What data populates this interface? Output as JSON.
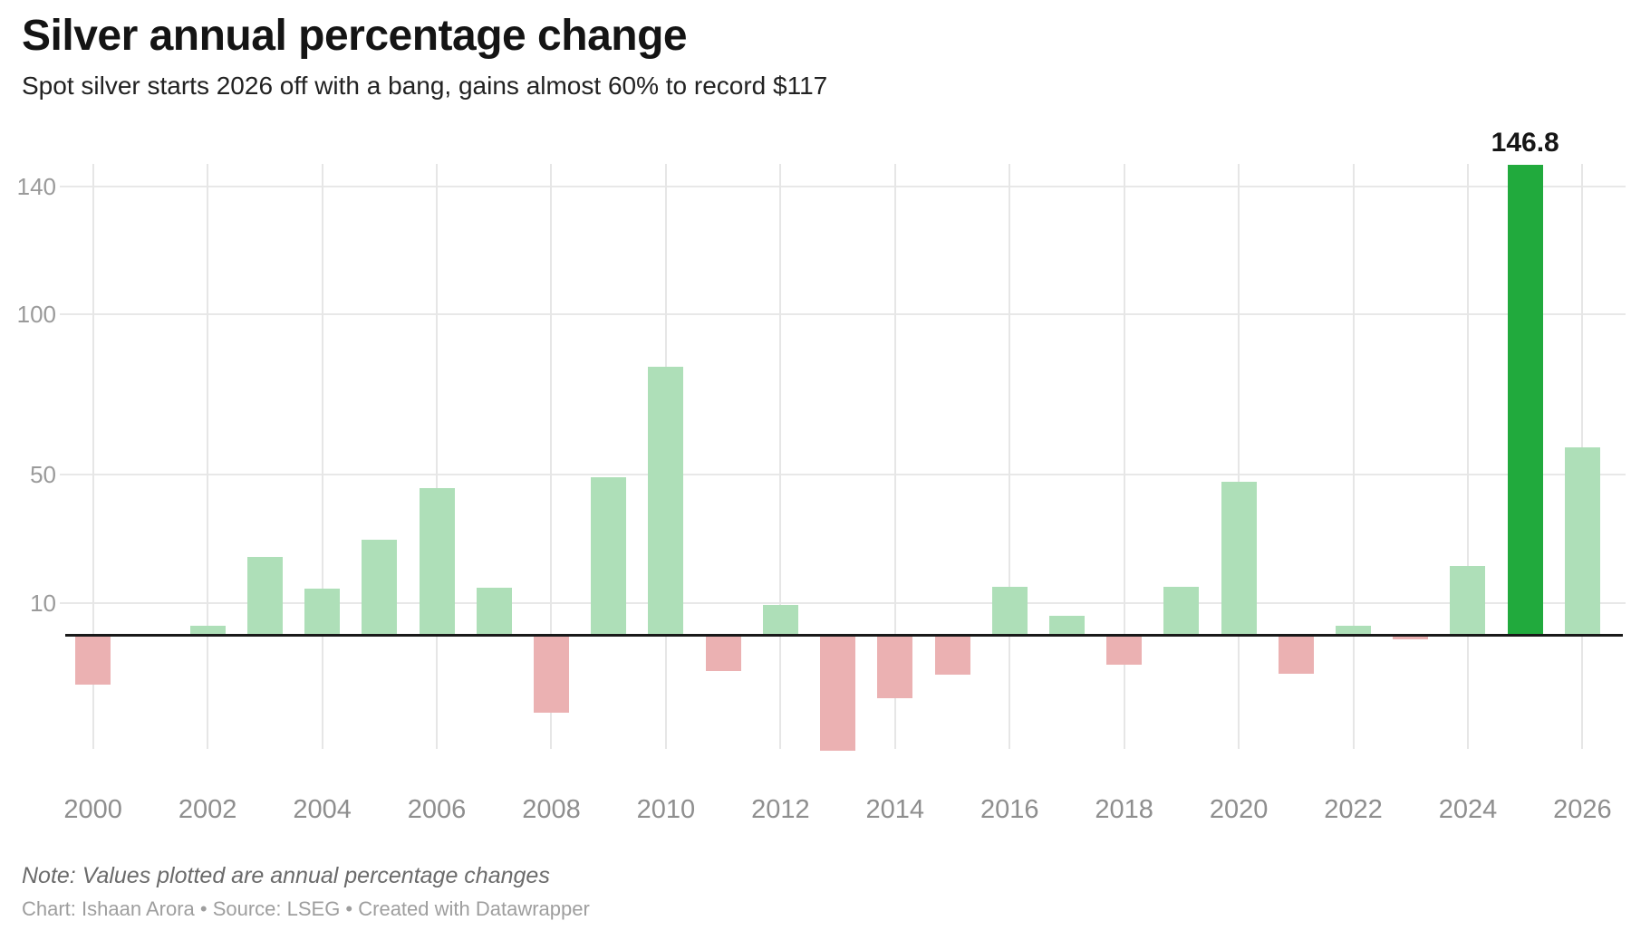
{
  "header": {
    "title": "Silver annual percentage change",
    "subtitle": "Spot silver starts 2026 off with a bang, gains almost 60% to record $117"
  },
  "chart_data": {
    "type": "bar",
    "title": "Silver annual percentage change",
    "subtitle": "Spot silver starts 2026 off with a bang, gains almost 60% to record $117",
    "x": [
      2000,
      2001,
      2002,
      2003,
      2004,
      2005,
      2006,
      2007,
      2008,
      2009,
      2010,
      2011,
      2012,
      2013,
      2014,
      2015,
      2016,
      2017,
      2018,
      2019,
      2020,
      2021,
      2022,
      2023,
      2024,
      2025,
      2026
    ],
    "values": [
      -15.4,
      0,
      2.9,
      24.4,
      14.3,
      29.8,
      45.8,
      14.6,
      -24.0,
      49.1,
      83.7,
      -10.9,
      9.2,
      -36.0,
      -19.6,
      -12.1,
      15.0,
      5.9,
      -9.0,
      15.1,
      47.7,
      -11.8,
      2.8,
      -1.2,
      21.6,
      146.8,
      58.5
    ],
    "xlabel": "",
    "ylabel": "",
    "xticks": [
      2000,
      2002,
      2004,
      2006,
      2008,
      2010,
      2012,
      2014,
      2016,
      2018,
      2020,
      2022,
      2024,
      2026
    ],
    "yticks": [
      10,
      50,
      100,
      140
    ],
    "ylim": [
      -40,
      155
    ],
    "grid": true,
    "legend": false,
    "highlight_year": 2025,
    "annotation": {
      "year": 2025,
      "text": "146.8"
    },
    "colors": {
      "positive": "#aedfb8",
      "negative": "#ebb1b2",
      "highlight": "#21aa3d",
      "baseline": "#191919",
      "gridline": "#e7e7e7"
    }
  },
  "footer": {
    "note": "Note: Values plotted are annual percentage changes",
    "credits": "Chart: Ishaan Arora • Source: LSEG • Created with Datawrapper"
  }
}
